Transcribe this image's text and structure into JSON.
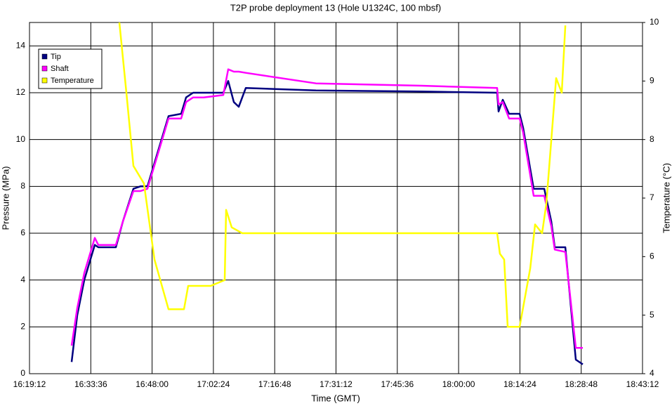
{
  "chart_data": {
    "type": "line",
    "title": "T2P probe deployment 13 (Hole U1324C, 100 mbsf)",
    "x_label": "Time (GMT)",
    "y_label": "Pressure (MPa)",
    "y2_label": "Temperature (°C)",
    "xlim": [
      "16:19:12",
      "18:43:12"
    ],
    "xticks": [
      "16:19:12",
      "16:33:36",
      "16:48:00",
      "17:02:24",
      "17:16:48",
      "17:31:12",
      "17:45:36",
      "18:00:00",
      "18:14:24",
      "18:28:48",
      "18:43:12"
    ],
    "ylim": [
      0,
      15
    ],
    "yticks": [
      0,
      2,
      4,
      6,
      8,
      10,
      12,
      14
    ],
    "y2lim": [
      4,
      10
    ],
    "y2ticks": [
      4,
      5,
      6,
      7,
      8,
      9,
      10
    ],
    "grid": true,
    "legend": "upper left",
    "x": [
      "16:29:06",
      "16:30:25",
      "16:32:04",
      "16:34:32",
      "16:35:22",
      "16:39:29",
      "16:41:08",
      "16:43:37",
      "16:45:16",
      "16:46:55",
      "16:49:23",
      "16:51:52",
      "16:54:50",
      "16:55:59",
      "16:57:38",
      "17:00:06",
      "17:04:44",
      "17:05:53",
      "17:07:12",
      "17:08:21",
      "17:10:00",
      "17:26:30",
      "17:51:15",
      "18:09:03",
      "18:09:23",
      "18:10:23",
      "18:11:52",
      "18:14:20",
      "18:15:10",
      "18:17:38",
      "18:20:07",
      "18:21:46",
      "18:22:35",
      "18:25:04",
      "18:27:32",
      "18:29:11"
    ],
    "series": [
      {
        "name": "Tip",
        "color": "#000080",
        "values": [
          0.5,
          2.5,
          4.0,
          5.5,
          5.4,
          5.4,
          6.5,
          7.9,
          8.0,
          8.0,
          9.5,
          11.0,
          11.1,
          11.8,
          12.0,
          12.0,
          12.0,
          12.5,
          11.6,
          11.4,
          12.2,
          12.1,
          12.05,
          12.0,
          11.2,
          11.7,
          11.1,
          11.1,
          10.5,
          7.9,
          7.9,
          6.5,
          5.4,
          5.4,
          0.6,
          0.4
        ]
      },
      {
        "name": "Shaft",
        "color": "#ff00ff",
        "values": [
          1.2,
          2.8,
          4.3,
          5.8,
          5.5,
          5.5,
          6.5,
          7.8,
          7.8,
          7.9,
          9.4,
          10.9,
          10.9,
          11.6,
          11.8,
          11.8,
          11.9,
          13.0,
          12.9,
          12.9,
          12.85,
          12.4,
          12.3,
          12.2,
          11.5,
          11.6,
          10.9,
          10.9,
          10.3,
          7.6,
          7.6,
          6.3,
          5.3,
          5.2,
          1.1,
          1.1
        ]
      },
      {
        "name": "Temperature",
        "color": "#ffff00",
        "axis": "y2",
        "x": [
          "16:40:19",
          "16:41:58",
          "16:43:37",
          "16:46:05",
          "16:48:34",
          "16:51:52",
          "16:55:29",
          "16:56:29",
          "17:01:45",
          "17:05:03",
          "17:05:23",
          "17:06:42",
          "17:09:11",
          "17:34:45",
          "18:09:03",
          "18:09:42",
          "18:10:42",
          "18:11:32",
          "18:14:20",
          "18:16:49",
          "18:17:58",
          "18:19:37",
          "18:20:36",
          "18:22:55",
          "18:24:14",
          "18:25:04"
        ],
        "values": [
          10,
          8.8,
          7.55,
          7.25,
          5.95,
          5.1,
          5.1,
          5.5,
          5.5,
          5.6,
          6.8,
          6.5,
          6.4,
          6.4,
          6.4,
          6.05,
          5.95,
          4.8,
          4.8,
          5.8,
          6.55,
          6.4,
          6.9,
          9.05,
          8.8,
          9.95
        ]
      }
    ]
  }
}
